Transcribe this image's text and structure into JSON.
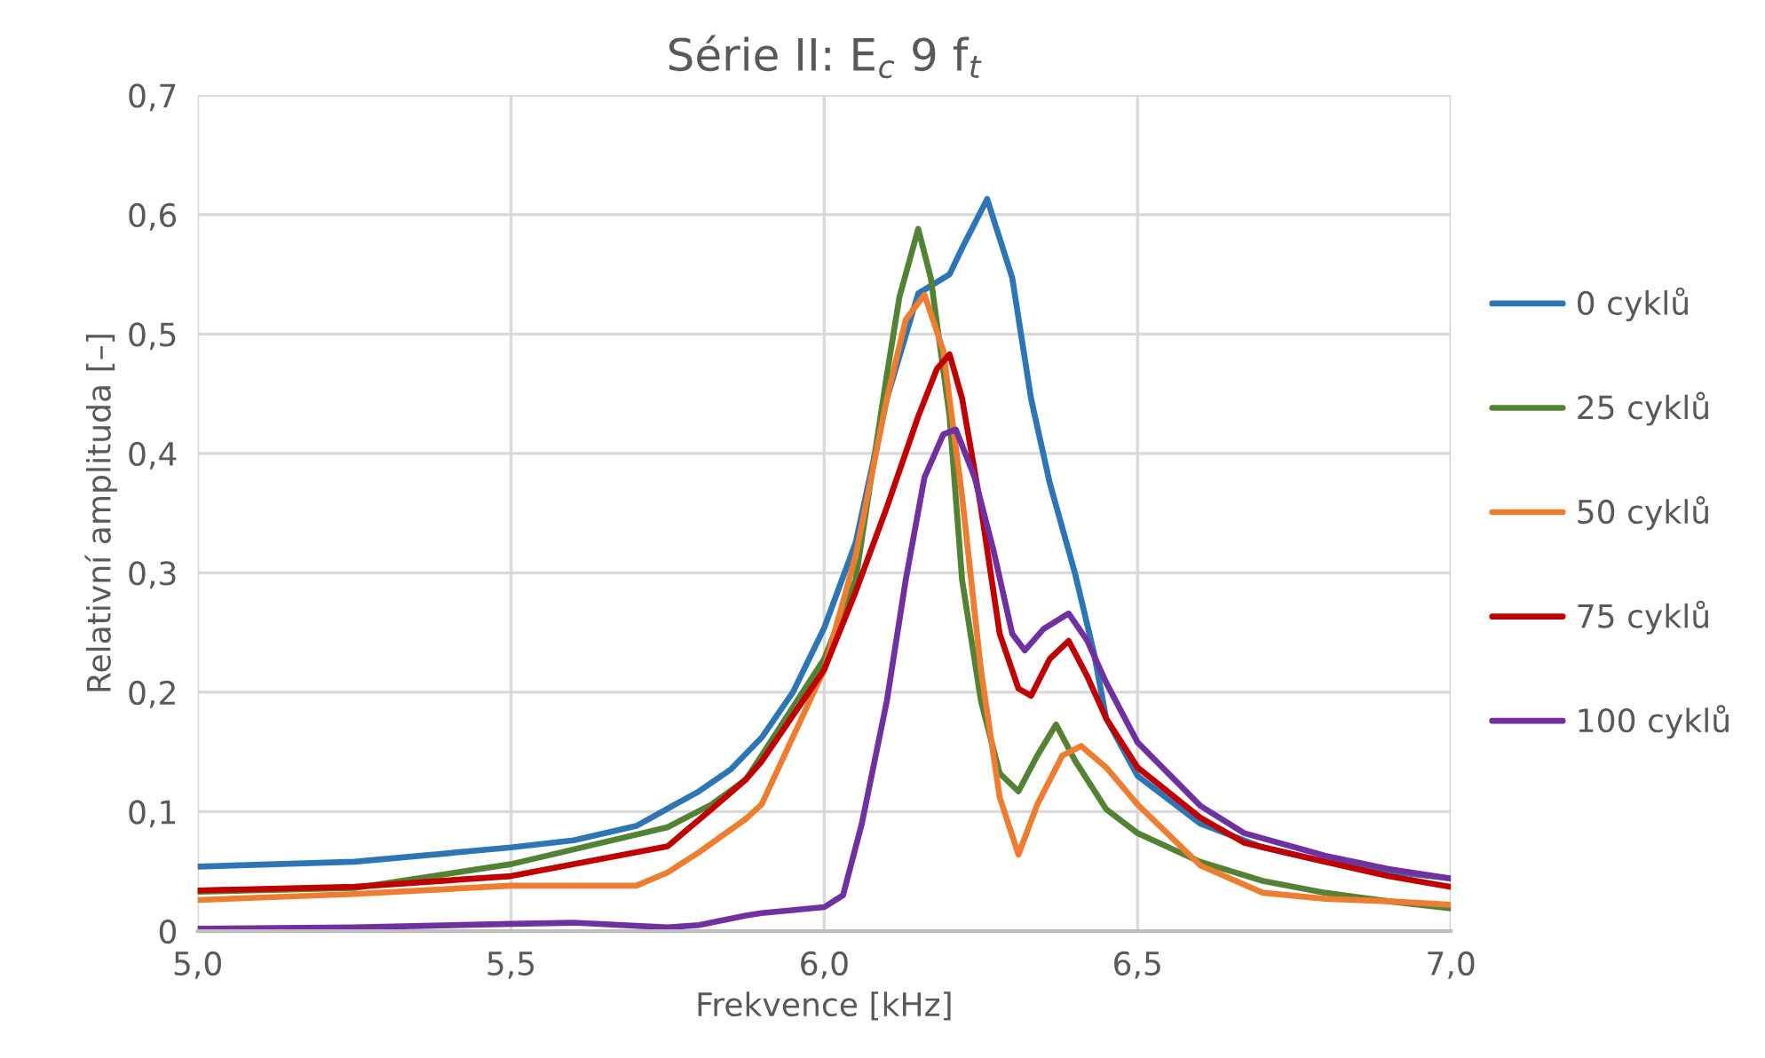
{
  "chart_data": {
    "type": "line",
    "title": "Série II: E$_{c}$ 9 f$_{t}$",
    "xlabel": "Frekvence [kHz]",
    "ylabel": "Relativní amplituda [–]",
    "xlim": [
      5.0,
      7.0
    ],
    "xticks": [
      {
        "value": 5.0,
        "label": "5,0"
      },
      {
        "value": 5.5,
        "label": "5,5"
      },
      {
        "value": 6.0,
        "label": "6,0"
      },
      {
        "value": 6.5,
        "label": "6,5"
      },
      {
        "value": 7.0,
        "label": "7,0"
      }
    ],
    "ylim": [
      0,
      0.7
    ],
    "yticks": [
      {
        "value": 0,
        "label": "0"
      },
      {
        "value": 0.1,
        "label": "0,1"
      },
      {
        "value": 0.2,
        "label": "0,2"
      },
      {
        "value": 0.3,
        "label": "0,3"
      },
      {
        "value": 0.4,
        "label": "0,4"
      },
      {
        "value": 0.5,
        "label": "0,5"
      },
      {
        "value": 0.6,
        "label": "0,6"
      },
      {
        "value": 0.7,
        "label": "0,7"
      }
    ],
    "grid": true,
    "legend": "right",
    "marker": "none",
    "line_style": "solid",
    "series": [
      {
        "name": "0 cyklů",
        "color": "#2e75b6",
        "x": [
          5.0,
          5.25,
          5.5,
          5.6,
          5.7,
          5.8,
          5.85,
          5.9,
          5.95,
          6.0,
          6.05,
          6.1,
          6.15,
          6.2,
          6.22,
          6.26,
          6.3,
          6.33,
          6.36,
          6.4,
          6.43,
          6.45,
          6.5,
          6.6,
          6.7,
          6.8,
          6.9,
          7.0
        ],
        "values": [
          0.054,
          0.058,
          0.07,
          0.076,
          0.088,
          0.117,
          0.135,
          0.162,
          0.2,
          0.254,
          0.325,
          0.446,
          0.534,
          0.55,
          0.572,
          0.613,
          0.547,
          0.446,
          0.375,
          0.3,
          0.234,
          0.178,
          0.13,
          0.09,
          0.07,
          0.058,
          0.05,
          0.044
        ]
      },
      {
        "name": "25 cyklů",
        "color": "#548235",
        "x": [
          5.0,
          5.25,
          5.5,
          5.75,
          5.82,
          5.875,
          5.9,
          6.0,
          6.05,
          6.1,
          6.12,
          6.15,
          6.17,
          6.2,
          6.22,
          6.25,
          6.28,
          6.31,
          6.34,
          6.37,
          6.4,
          6.45,
          6.5,
          6.6,
          6.7,
          6.8,
          6.9,
          7.0
        ],
        "values": [
          0.033,
          0.036,
          0.056,
          0.087,
          0.106,
          0.127,
          0.147,
          0.228,
          0.294,
          0.466,
          0.531,
          0.588,
          0.547,
          0.431,
          0.294,
          0.193,
          0.132,
          0.117,
          0.147,
          0.173,
          0.143,
          0.102,
          0.082,
          0.058,
          0.042,
          0.032,
          0.025,
          0.019
        ]
      },
      {
        "name": "50 cyklů",
        "color": "#ed7d31",
        "x": [
          5.0,
          5.25,
          5.5,
          5.6,
          5.7,
          5.75,
          5.8,
          5.875,
          5.9,
          6.0,
          6.05,
          6.1,
          6.13,
          6.16,
          6.19,
          6.22,
          6.25,
          6.28,
          6.31,
          6.34,
          6.38,
          6.41,
          6.45,
          6.5,
          6.6,
          6.7,
          6.8,
          6.9,
          7.0
        ],
        "values": [
          0.026,
          0.031,
          0.038,
          0.038,
          0.038,
          0.049,
          0.066,
          0.094,
          0.106,
          0.219,
          0.314,
          0.446,
          0.512,
          0.533,
          0.486,
          0.364,
          0.219,
          0.112,
          0.064,
          0.106,
          0.147,
          0.155,
          0.137,
          0.106,
          0.055,
          0.032,
          0.027,
          0.025,
          0.022
        ]
      },
      {
        "name": "75 cyklů",
        "color": "#c00000",
        "x": [
          5.0,
          5.25,
          5.5,
          5.75,
          5.82,
          5.875,
          5.9,
          6.0,
          6.05,
          6.1,
          6.15,
          6.18,
          6.2,
          6.22,
          6.25,
          6.28,
          6.31,
          6.33,
          6.36,
          6.39,
          6.42,
          6.45,
          6.5,
          6.6,
          6.67,
          6.8,
          6.9,
          7.0
        ],
        "values": [
          0.034,
          0.037,
          0.046,
          0.071,
          0.102,
          0.127,
          0.142,
          0.219,
          0.284,
          0.355,
          0.431,
          0.471,
          0.483,
          0.446,
          0.355,
          0.249,
          0.203,
          0.197,
          0.228,
          0.243,
          0.213,
          0.178,
          0.137,
          0.095,
          0.074,
          0.058,
          0.046,
          0.037
        ]
      },
      {
        "name": "100 cyklů",
        "color": "#7030a0",
        "x": [
          5.0,
          5.25,
          5.5,
          5.6,
          5.75,
          5.8,
          5.875,
          5.9,
          6.0,
          6.03,
          6.06,
          6.1,
          6.13,
          6.16,
          6.19,
          6.21,
          6.24,
          6.27,
          6.3,
          6.32,
          6.35,
          6.39,
          6.42,
          6.45,
          6.5,
          6.6,
          6.67,
          6.8,
          6.9,
          7.0
        ],
        "values": [
          0.002,
          0.003,
          0.006,
          0.007,
          0.003,
          0.005,
          0.013,
          0.015,
          0.02,
          0.03,
          0.09,
          0.193,
          0.294,
          0.38,
          0.416,
          0.42,
          0.38,
          0.319,
          0.249,
          0.235,
          0.253,
          0.266,
          0.243,
          0.208,
          0.158,
          0.105,
          0.082,
          0.063,
          0.052,
          0.044
        ]
      }
    ]
  }
}
